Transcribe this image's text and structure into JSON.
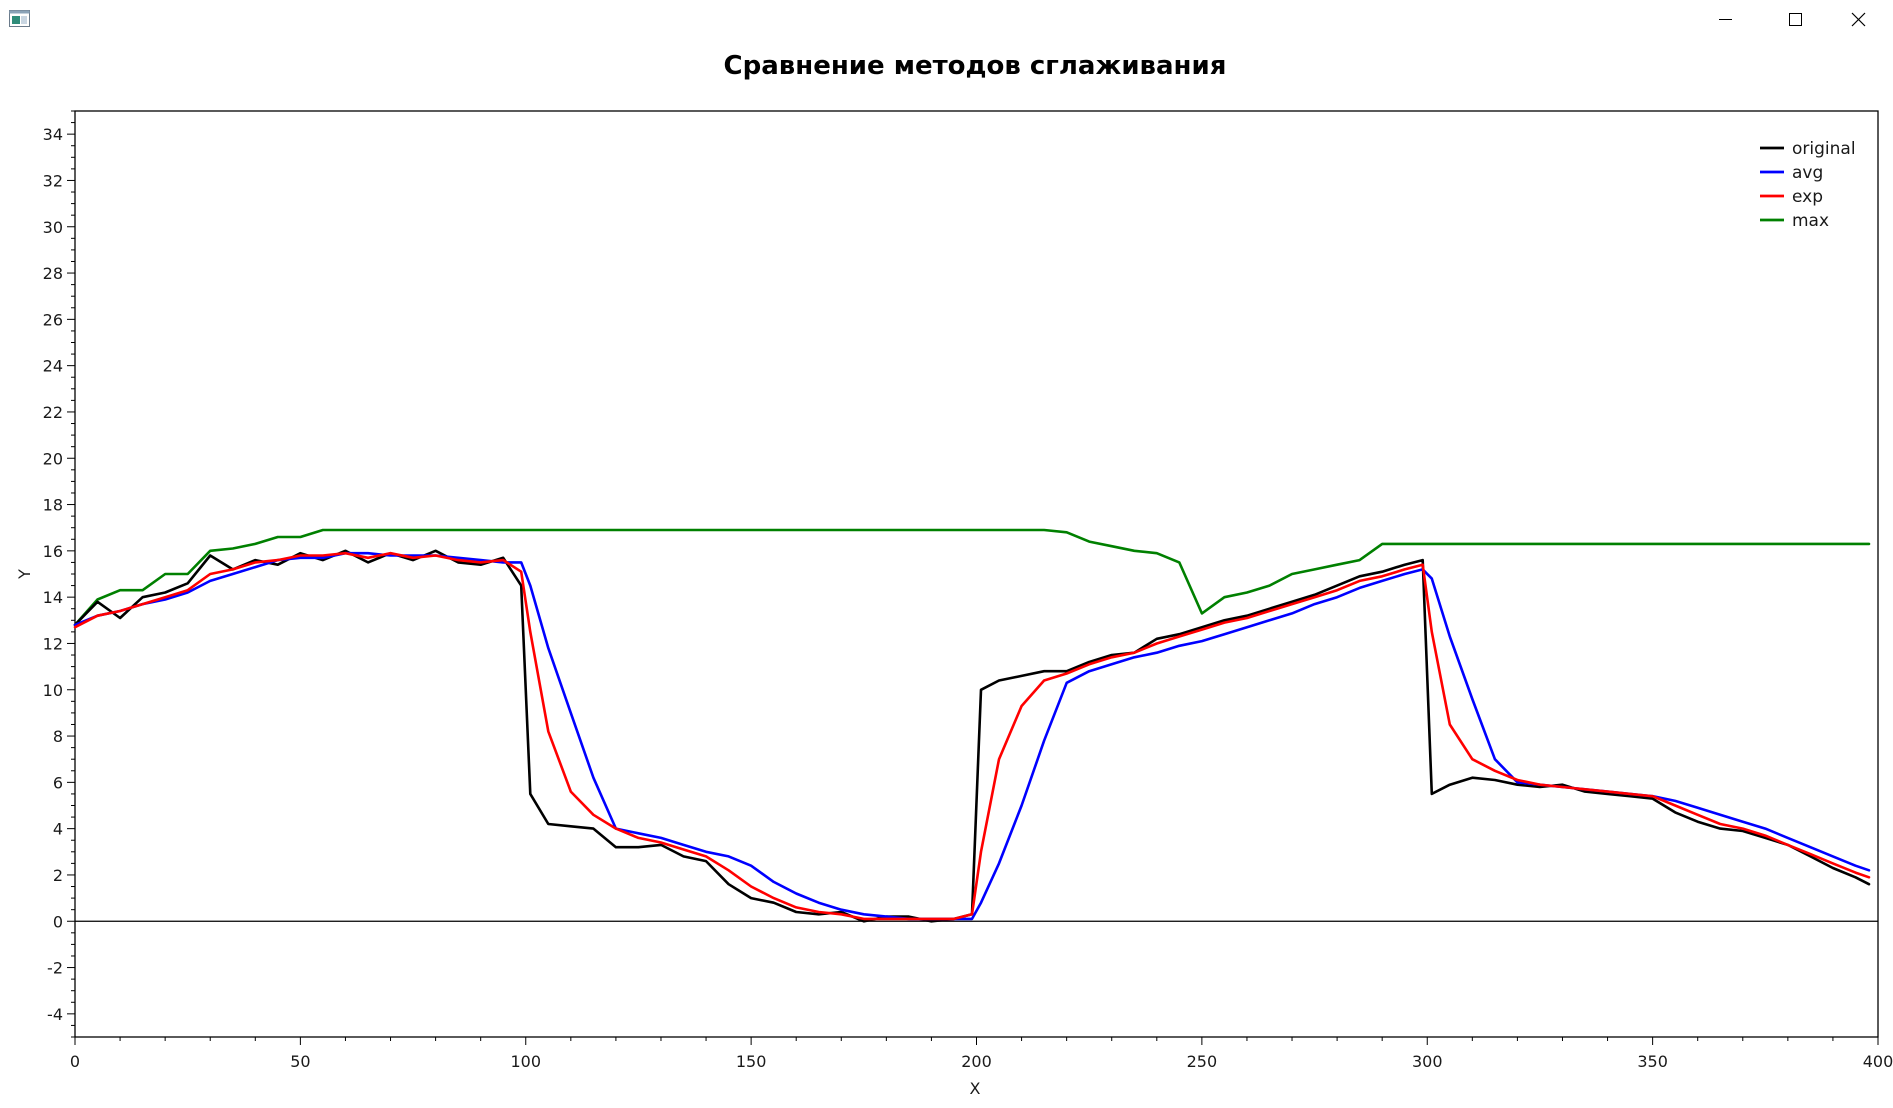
{
  "window": {
    "icon": "app-window-icon",
    "controls": [
      {
        "name": "minimize-button",
        "icon": "minimize-icon"
      },
      {
        "name": "maximize-button",
        "icon": "maximize-icon"
      },
      {
        "name": "close-button",
        "icon": "close-icon"
      }
    ]
  },
  "chart_data": {
    "type": "line",
    "title": "Сравнение методов сглаживания",
    "xlabel": "X",
    "ylabel": "Y",
    "xlim": [
      0,
      400
    ],
    "ylim": [
      -5,
      35
    ],
    "x_ticks": [
      0,
      50,
      100,
      150,
      200,
      250,
      300,
      350,
      400
    ],
    "y_ticks": [
      -4,
      -2,
      0,
      2,
      4,
      6,
      8,
      10,
      12,
      14,
      16,
      18,
      20,
      22,
      24,
      26,
      28,
      30,
      32,
      34
    ],
    "grid": false,
    "zero_line": true,
    "legend": "top-right",
    "x": [
      0,
      5,
      10,
      15,
      20,
      25,
      30,
      35,
      40,
      45,
      50,
      55,
      60,
      65,
      70,
      75,
      80,
      85,
      90,
      95,
      99,
      101,
      105,
      110,
      115,
      120,
      125,
      130,
      135,
      140,
      145,
      150,
      155,
      160,
      165,
      170,
      175,
      180,
      185,
      190,
      195,
      199,
      201,
      205,
      210,
      215,
      220,
      225,
      230,
      235,
      240,
      245,
      250,
      255,
      260,
      265,
      270,
      275,
      280,
      285,
      290,
      295,
      299,
      301,
      305,
      310,
      315,
      320,
      325,
      330,
      335,
      340,
      345,
      350,
      355,
      360,
      365,
      370,
      375,
      380,
      385,
      390,
      395,
      398
    ],
    "series": [
      {
        "name": "original",
        "color": "#000000",
        "values": [
          12.8,
          13.8,
          13.1,
          14.0,
          14.2,
          14.6,
          15.8,
          15.2,
          15.6,
          15.4,
          15.9,
          15.6,
          16.0,
          15.5,
          15.9,
          15.6,
          16.0,
          15.5,
          15.4,
          15.7,
          14.5,
          5.5,
          4.2,
          4.1,
          4.0,
          3.2,
          3.2,
          3.3,
          2.8,
          2.6,
          1.6,
          1.0,
          0.8,
          0.4,
          0.3,
          0.4,
          0.0,
          0.2,
          0.2,
          0.0,
          0.1,
          0.3,
          10.0,
          10.4,
          10.6,
          10.8,
          10.8,
          11.2,
          11.5,
          11.6,
          12.2,
          12.4,
          12.7,
          13.0,
          13.2,
          13.5,
          13.8,
          14.1,
          14.5,
          14.9,
          15.1,
          15.4,
          15.6,
          5.5,
          5.9,
          6.2,
          6.1,
          5.9,
          5.8,
          5.9,
          5.6,
          5.5,
          5.4,
          5.3,
          4.7,
          4.3,
          4.0,
          3.9,
          3.6,
          3.3,
          2.8,
          2.3,
          1.9,
          1.6
        ]
      },
      {
        "name": "avg",
        "color": "#0000ff",
        "values": [
          12.8,
          13.2,
          13.4,
          13.7,
          13.9,
          14.2,
          14.7,
          15.0,
          15.3,
          15.6,
          15.7,
          15.7,
          15.9,
          15.9,
          15.8,
          15.8,
          15.8,
          15.7,
          15.6,
          15.5,
          15.5,
          14.5,
          11.8,
          9.0,
          6.2,
          4.0,
          3.8,
          3.6,
          3.3,
          3.0,
          2.8,
          2.4,
          1.7,
          1.2,
          0.8,
          0.5,
          0.3,
          0.2,
          0.1,
          0.1,
          0.1,
          0.1,
          0.8,
          2.5,
          5.0,
          7.8,
          10.3,
          10.8,
          11.1,
          11.4,
          11.6,
          11.9,
          12.1,
          12.4,
          12.7,
          13.0,
          13.3,
          13.7,
          14.0,
          14.4,
          14.7,
          15.0,
          15.2,
          14.8,
          12.3,
          9.6,
          7.0,
          6.0,
          5.9,
          5.8,
          5.7,
          5.6,
          5.5,
          5.4,
          5.2,
          4.9,
          4.6,
          4.3,
          4.0,
          3.6,
          3.2,
          2.8,
          2.4,
          2.2
        ]
      },
      {
        "name": "exp",
        "color": "#ff0000",
        "values": [
          12.7,
          13.2,
          13.4,
          13.7,
          14.0,
          14.3,
          15.0,
          15.2,
          15.5,
          15.6,
          15.8,
          15.8,
          15.9,
          15.7,
          15.9,
          15.7,
          15.8,
          15.6,
          15.5,
          15.6,
          15.1,
          12.5,
          8.2,
          5.6,
          4.6,
          4.0,
          3.6,
          3.4,
          3.1,
          2.8,
          2.2,
          1.5,
          1.0,
          0.6,
          0.4,
          0.3,
          0.1,
          0.1,
          0.1,
          0.1,
          0.1,
          0.3,
          3.0,
          7.0,
          9.3,
          10.4,
          10.7,
          11.1,
          11.4,
          11.6,
          12.0,
          12.3,
          12.6,
          12.9,
          13.1,
          13.4,
          13.7,
          14.0,
          14.3,
          14.7,
          14.9,
          15.2,
          15.4,
          12.5,
          8.5,
          7.0,
          6.5,
          6.1,
          5.9,
          5.8,
          5.7,
          5.6,
          5.5,
          5.4,
          5.0,
          4.6,
          4.2,
          4.0,
          3.7,
          3.3,
          2.9,
          2.5,
          2.1,
          1.9
        ]
      },
      {
        "name": "max",
        "color": "#008000",
        "values": [
          12.8,
          13.9,
          14.3,
          14.3,
          15.0,
          15.0,
          16.0,
          16.1,
          16.3,
          16.6,
          16.6,
          16.9,
          16.9,
          16.9,
          16.9,
          16.9,
          16.9,
          16.9,
          16.9,
          16.9,
          16.9,
          16.9,
          16.9,
          16.9,
          16.9,
          16.9,
          16.9,
          16.9,
          16.9,
          16.9,
          16.9,
          16.9,
          16.9,
          16.9,
          16.9,
          16.9,
          16.9,
          16.9,
          16.9,
          16.9,
          16.9,
          16.9,
          16.9,
          16.9,
          16.9,
          16.9,
          16.8,
          16.4,
          16.2,
          16.0,
          15.9,
          15.5,
          13.3,
          14.0,
          14.2,
          14.5,
          15.0,
          15.2,
          15.4,
          15.6,
          16.3,
          16.3,
          16.3,
          16.3,
          16.3,
          16.3,
          16.3,
          16.3,
          16.3,
          16.3,
          16.3,
          16.3,
          16.3,
          16.3,
          16.3,
          16.3,
          16.3,
          16.3,
          16.3,
          16.3,
          16.3,
          16.3,
          16.3,
          16.3
        ]
      }
    ]
  }
}
